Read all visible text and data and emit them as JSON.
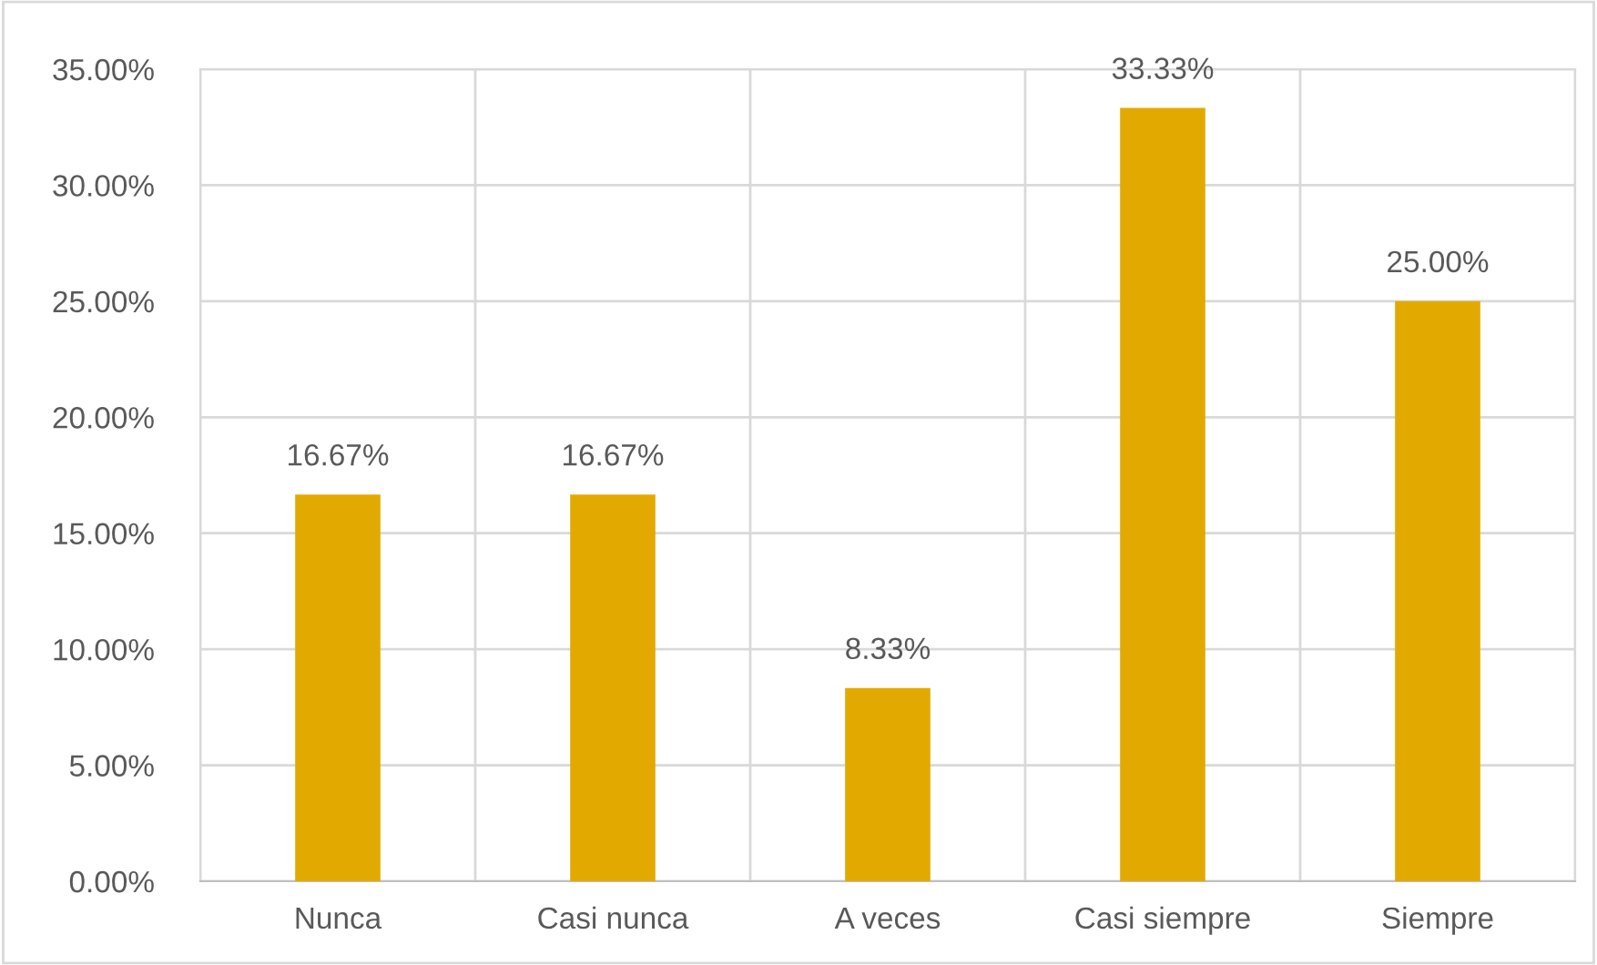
{
  "chart_data": {
    "type": "bar",
    "categories": [
      "Nunca",
      "Casi nunca",
      "A veces",
      "Casi siempre",
      "Siempre"
    ],
    "values": [
      16.67,
      16.67,
      8.33,
      33.33,
      25.0
    ],
    "value_labels": [
      "16.67%",
      "16.67%",
      "8.33%",
      "33.33%",
      "25.00%"
    ],
    "color": "#e2aa00",
    "ylim": [
      0,
      35
    ],
    "yticks": [
      {
        "value": 0,
        "label": "0.00%"
      },
      {
        "value": 5,
        "label": "5.00%"
      },
      {
        "value": 10,
        "label": "10.00%"
      },
      {
        "value": 15,
        "label": "15.00%"
      },
      {
        "value": 20,
        "label": "20.00%"
      },
      {
        "value": 25,
        "label": "25.00%"
      },
      {
        "value": 30,
        "label": "30.00%"
      },
      {
        "value": 35,
        "label": "35.00%"
      }
    ],
    "grid": true
  }
}
